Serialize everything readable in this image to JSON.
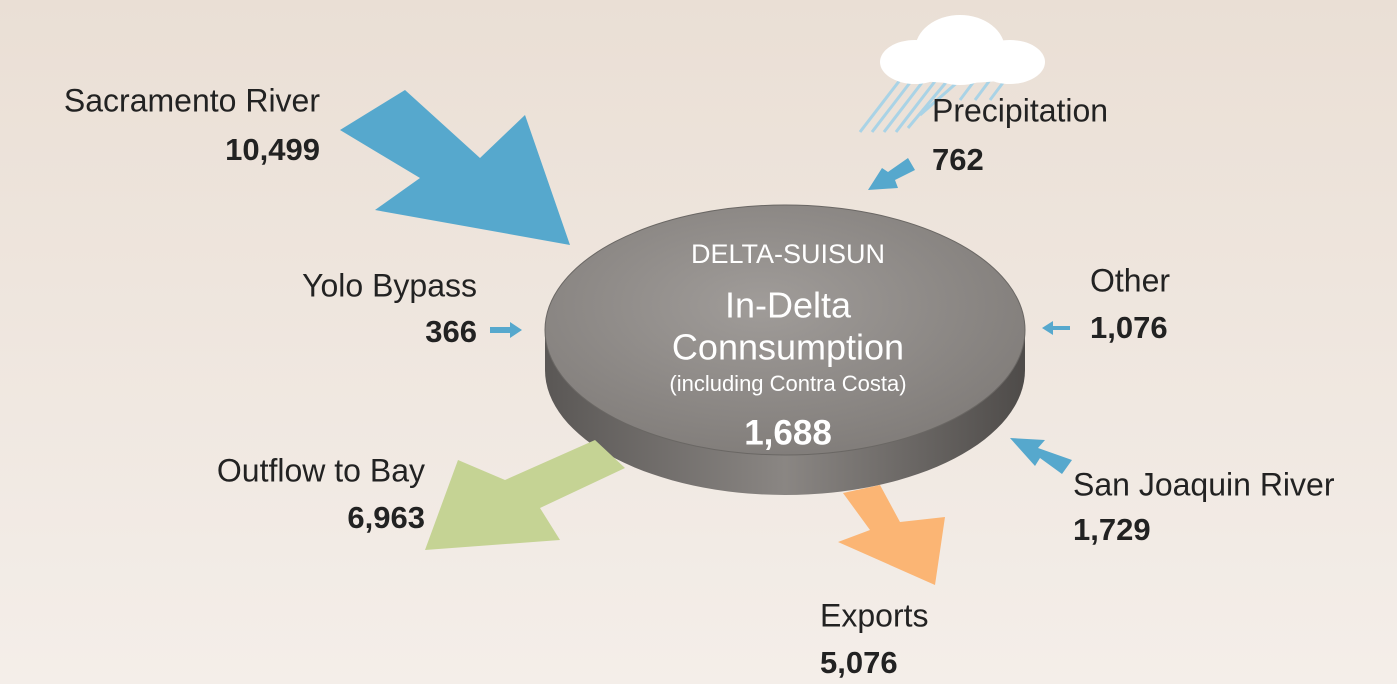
{
  "center": {
    "title": "DELTA-SUISUN",
    "line1": "In-Delta",
    "line2": "Connsumption",
    "note": "(including Contra Costa)",
    "value": "1,688"
  },
  "flows": [
    {
      "label": "Sacramento River",
      "value": "10,499"
    },
    {
      "label": "Precipitation",
      "value": "762"
    },
    {
      "label": "Yolo Bypass",
      "value": "366"
    },
    {
      "label": "Other",
      "value": "1,076"
    },
    {
      "label": "San Joaquin River",
      "value": "1,729"
    },
    {
      "label": "Outflow to Bay",
      "value": "6,963"
    },
    {
      "label": "Exports",
      "value": "5,076"
    }
  ]
}
